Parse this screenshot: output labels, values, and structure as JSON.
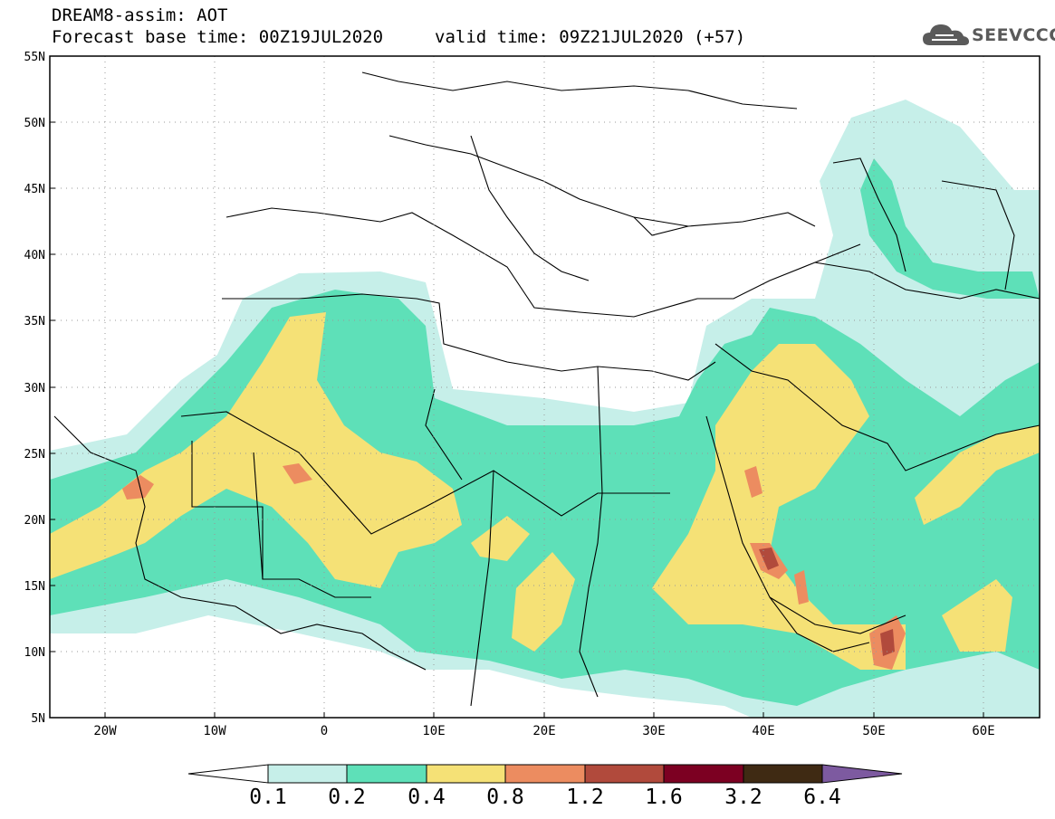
{
  "header": {
    "title_line1": "DREAM8-assim: AOT",
    "title_line2": "Forecast base time: 00Z19JUL2020",
    "valid_time": "valid time: 09Z21JUL2020 (+57)",
    "logo_text": "SEEVCCC"
  },
  "map": {
    "lat_labels": [
      "55N",
      "50N",
      "45N",
      "40N",
      "35N",
      "30N",
      "25N",
      "20N",
      "15N",
      "10N",
      "5N"
    ],
    "lon_labels": [
      "20W",
      "10W",
      "0",
      "10E",
      "20E",
      "30E",
      "40E",
      "50E",
      "60E"
    ],
    "lon_range": [
      -25,
      65
    ],
    "lat_range": [
      5,
      55
    ],
    "gridlines": "dotted"
  },
  "colorbar": {
    "levels": [
      "0.1",
      "0.2",
      "0.4",
      "0.8",
      "1.2",
      "1.6",
      "3.2",
      "6.4"
    ],
    "colors": [
      "#c6efe9",
      "#5ee0b8",
      "#f5e176",
      "#ec8c60",
      "#b14a3c",
      "#7c0022",
      "#3f2a13",
      "#7d5aa0"
    ]
  }
}
